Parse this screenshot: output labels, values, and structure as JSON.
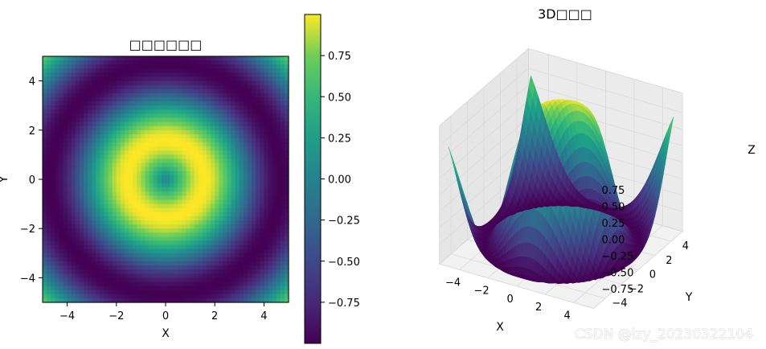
{
  "chart_data": [
    {
      "type": "heatmap",
      "title": "□□□□□□",
      "xlabel": "X",
      "ylabel": "Y",
      "xlim": [
        -5,
        5
      ],
      "ylim": [
        -5,
        5
      ],
      "xticks": [
        "−4",
        "−2",
        "0",
        "2",
        "4"
      ],
      "yticks": [
        "−4",
        "−2",
        "0",
        "2",
        "4"
      ],
      "function": "z = sin(sqrt(x^2 + y^2))",
      "colormap": "viridis",
      "colorbar": {
        "range": [
          -1,
          1
        ],
        "ticks": [
          "0.75",
          "0.50",
          "0.25",
          "0.00",
          "−0.25",
          "−0.50",
          "−0.75"
        ]
      }
    },
    {
      "type": "surface3d",
      "title": "3D□□□",
      "xlabel": "X",
      "ylabel": "Y",
      "zlabel": "Z",
      "xlim": [
        -5,
        5
      ],
      "ylim": [
        -5,
        5
      ],
      "zlim": [
        -1,
        1
      ],
      "xticks": [
        "−4",
        "−2",
        "0",
        "2",
        "4"
      ],
      "yticks": [
        "−4",
        "−2",
        "0",
        "2",
        "4"
      ],
      "zticks": [
        "0.75",
        "0.50",
        "0.25",
        "0.00",
        "−0.25",
        "−0.50",
        "−0.75"
      ],
      "function": "z = sin(sqrt(x^2 + y^2))",
      "colormap": "viridis"
    }
  ],
  "watermark": "CSDN @lzy_20230322104"
}
